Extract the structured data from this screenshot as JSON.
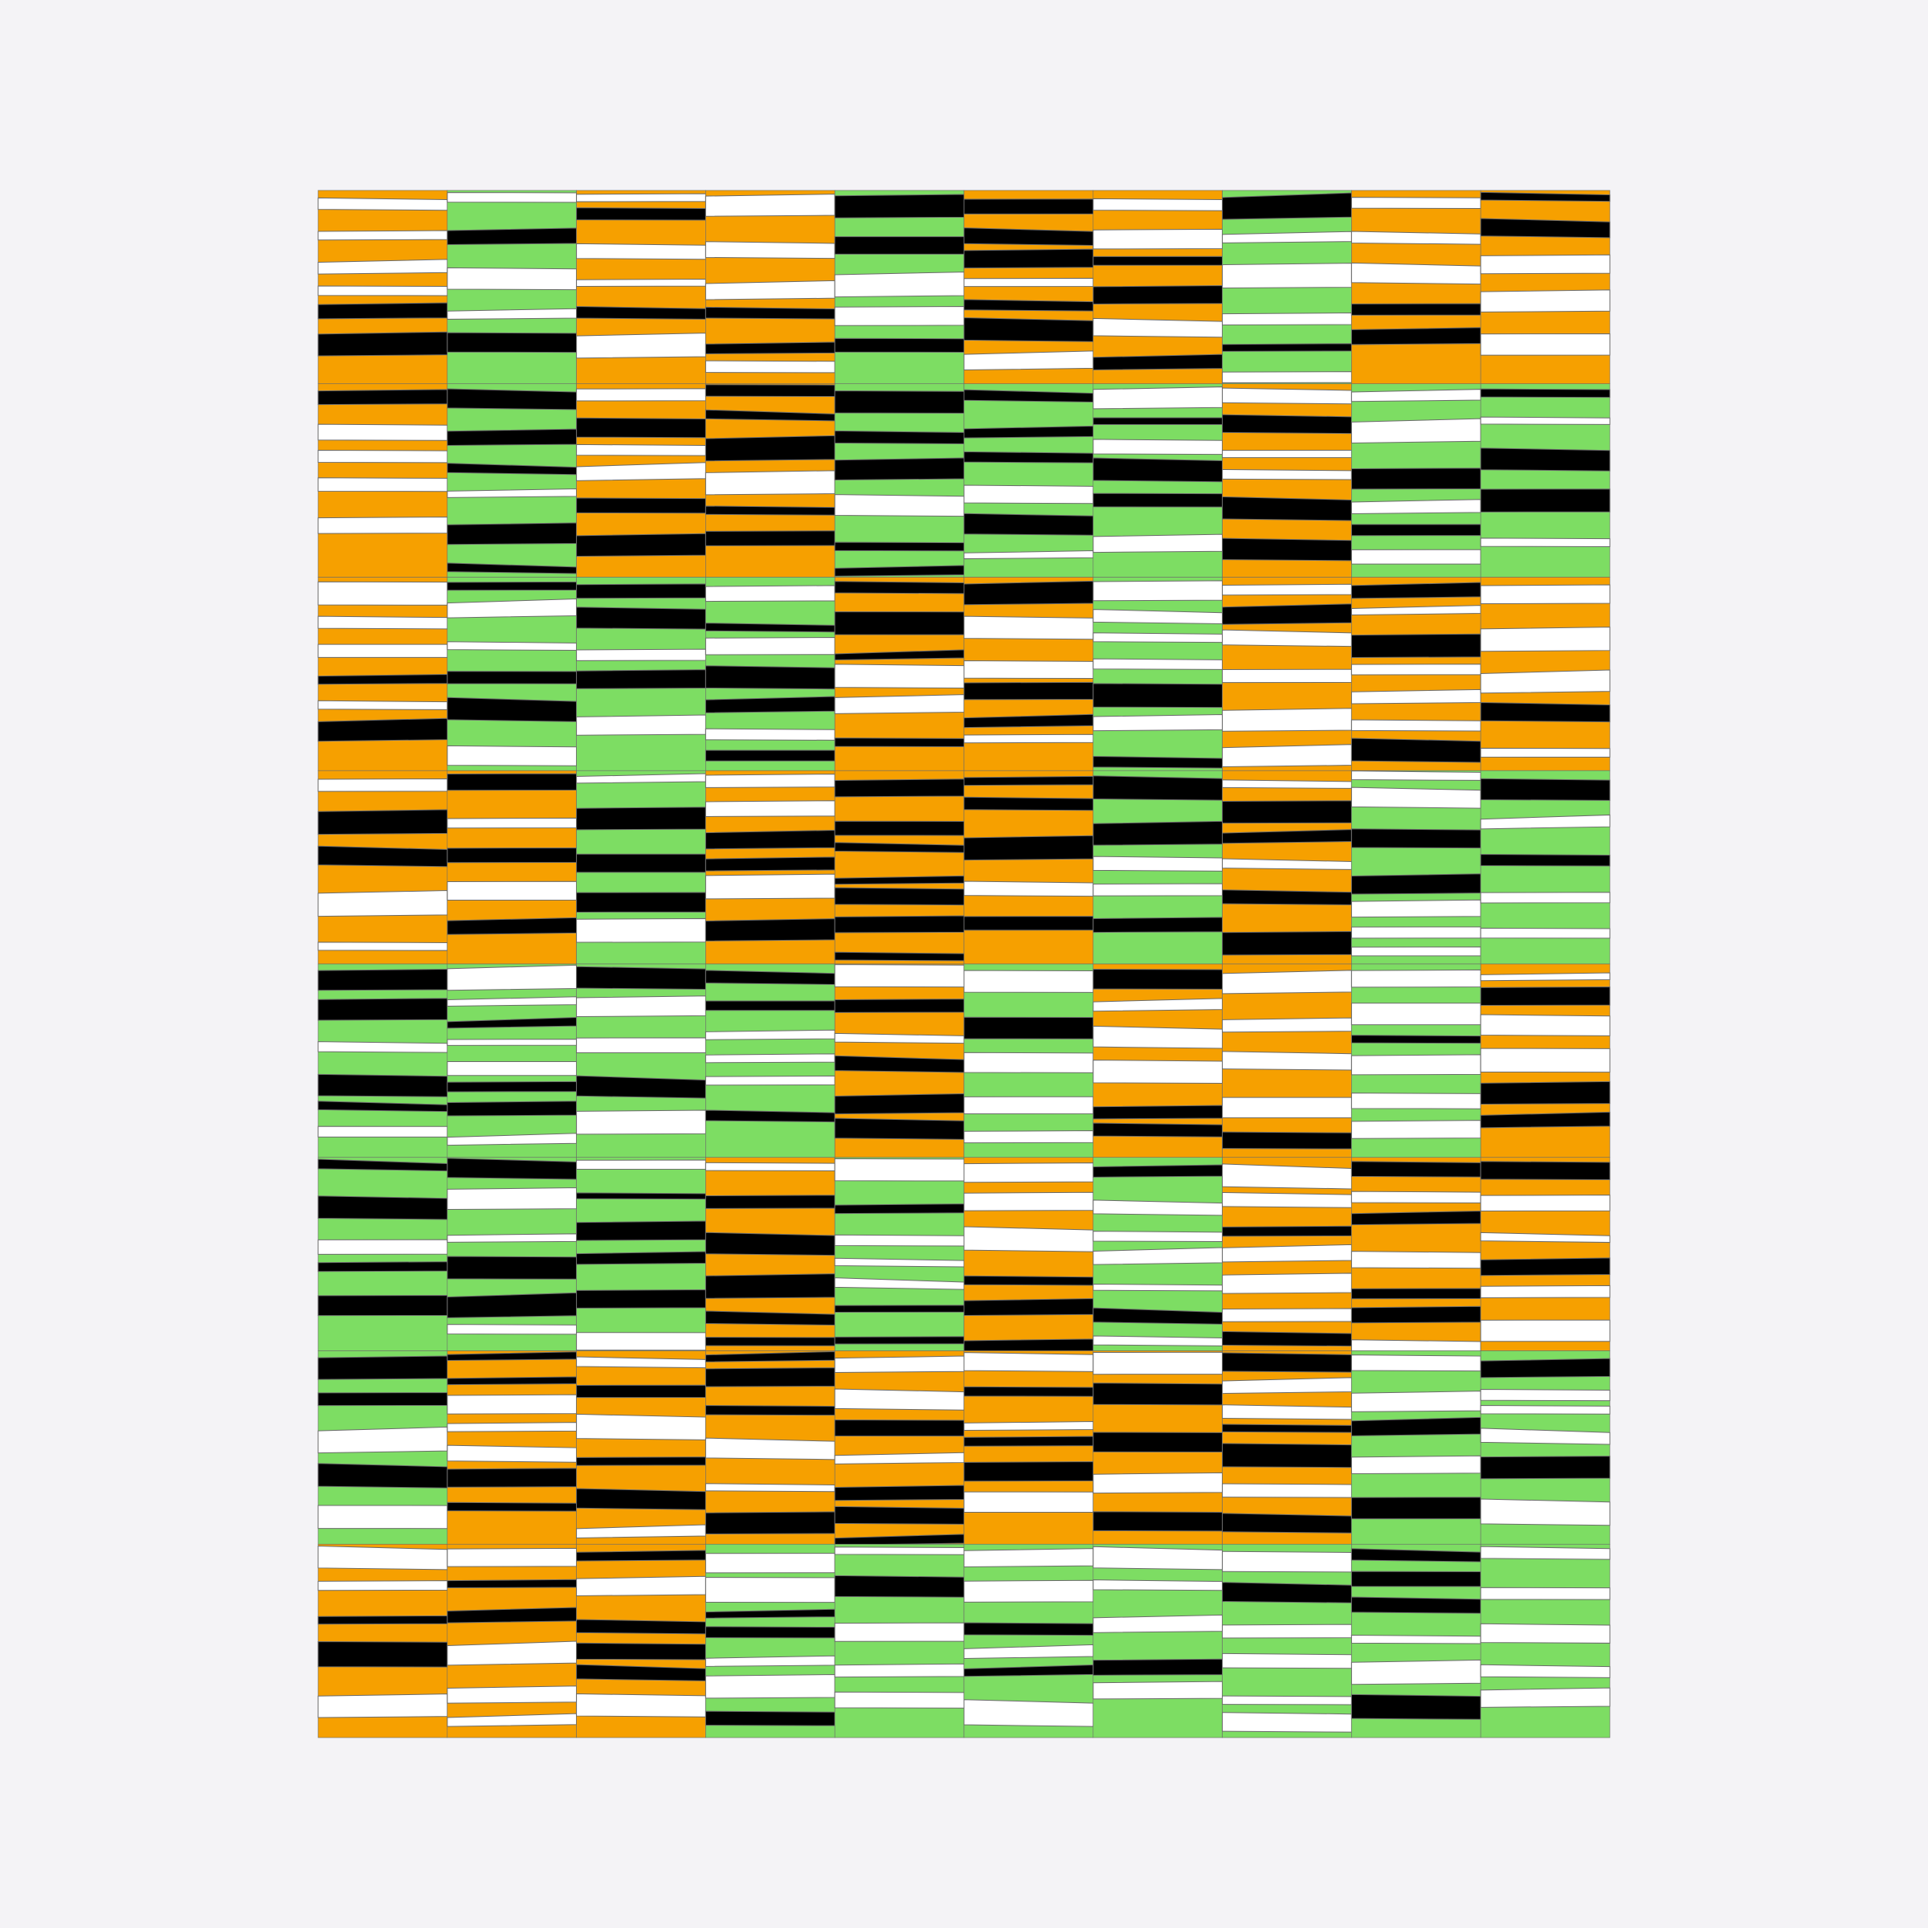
{
  "background": "#f4f3f6",
  "palette": {
    "orange": "#f6a000",
    "green": "#7ddd63",
    "black": "#000000",
    "white": "#ffffff",
    "outline": "#6b6b6b"
  },
  "grid": {
    "columns": 10,
    "rows": 8,
    "cells": [
      [
        "orange",
        "green",
        "orange",
        "orange",
        "green",
        "orange",
        "orange",
        "green",
        "orange",
        "orange"
      ],
      [
        "orange",
        "green",
        "orange",
        "orange",
        "green",
        "green",
        "green",
        "orange",
        "green",
        "green"
      ],
      [
        "orange",
        "green",
        "green",
        "green",
        "orange",
        "orange",
        "green",
        "orange",
        "orange",
        "orange"
      ],
      [
        "orange",
        "orange",
        "green",
        "orange",
        "orange",
        "orange",
        "green",
        "orange",
        "green",
        "green"
      ],
      [
        "green",
        "green",
        "green",
        "green",
        "orange",
        "green",
        "orange",
        "orange",
        "green",
        "orange"
      ],
      [
        "green",
        "green",
        "green",
        "orange",
        "green",
        "orange",
        "green",
        "orange",
        "orange",
        "orange"
      ],
      [
        "green",
        "orange",
        "orange",
        "orange",
        "orange",
        "orange",
        "orange",
        "orange",
        "green",
        "green"
      ],
      [
        "orange",
        "orange",
        "orange",
        "green",
        "green",
        "green",
        "green",
        "green",
        "green",
        "green"
      ]
    ]
  }
}
